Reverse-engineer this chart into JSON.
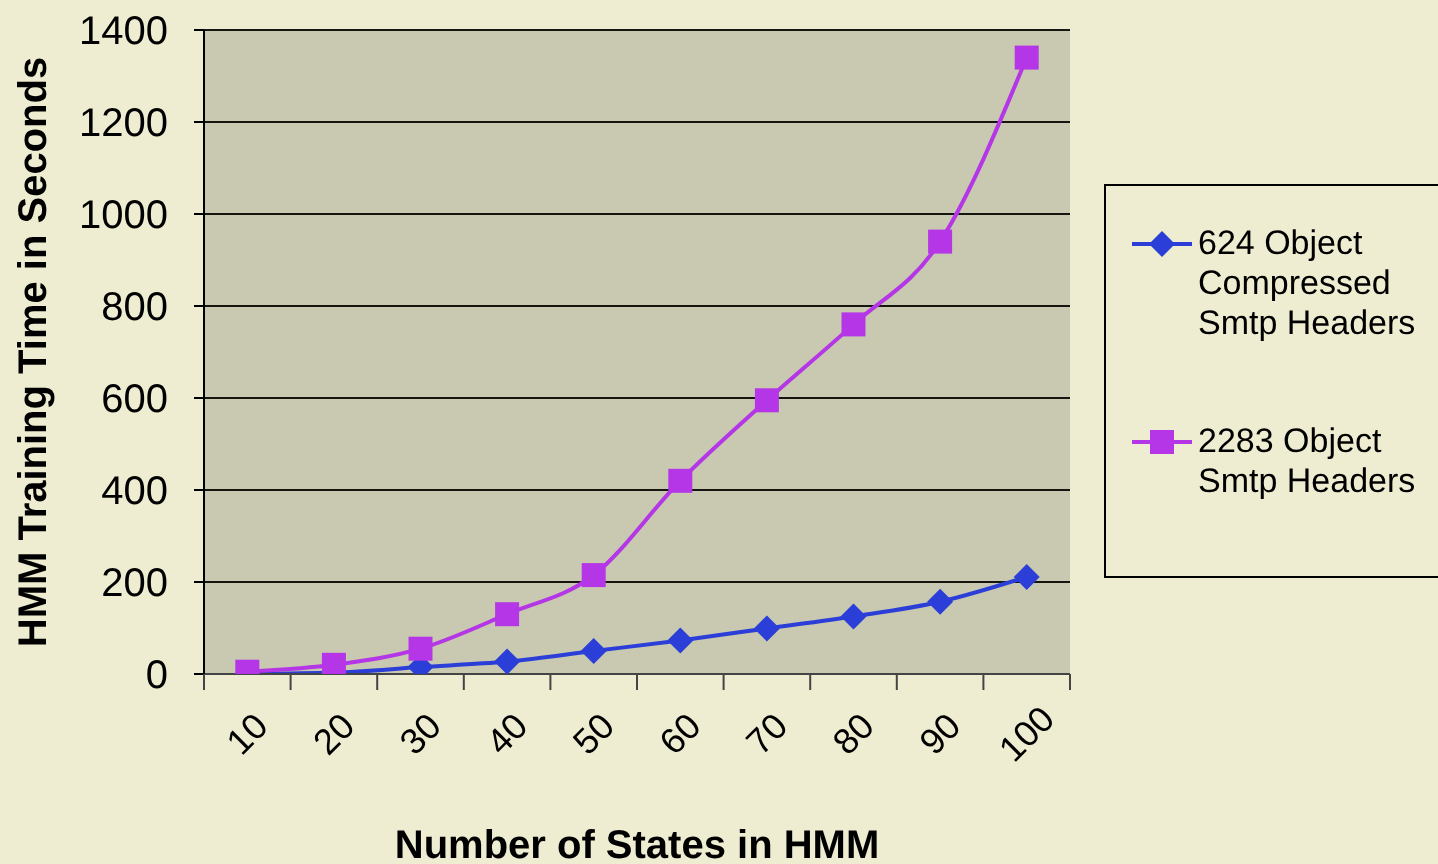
{
  "chart_data": {
    "type": "line",
    "xlabel": "Number of States in HMM",
    "ylabel": "HMM Training Time in Seconds",
    "categories": [
      "10",
      "20",
      "30",
      "40",
      "50",
      "60",
      "70",
      "80",
      "90",
      "100"
    ],
    "series": [
      {
        "name": "624 Object Compressed Smtp Headers",
        "color": "#2b3fd8",
        "marker": "diamond",
        "values": [
          0,
          3,
          15,
          27,
          50,
          73,
          99,
          125,
          157,
          211
        ]
      },
      {
        "name": "2283 Object Smtp Headers",
        "color": "#b436e6",
        "marker": "square",
        "values": [
          5,
          20,
          55,
          130,
          215,
          420,
          595,
          760,
          940,
          1340
        ]
      }
    ],
    "ylim": [
      0,
      1400
    ],
    "yticks": [
      0,
      200,
      400,
      600,
      800,
      1000,
      1200,
      1400
    ],
    "grid": "y",
    "legend": "right",
    "line_style": "solid"
  }
}
